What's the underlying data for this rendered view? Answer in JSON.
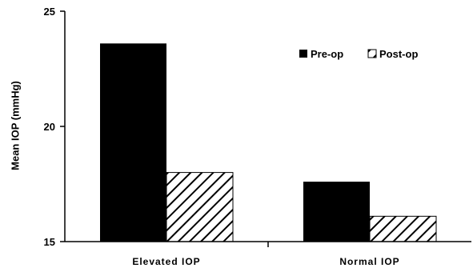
{
  "chart_data": {
    "type": "bar",
    "title": "",
    "xlabel": "",
    "ylabel": "Mean IOP (mmHg)",
    "ylim": [
      15,
      25
    ],
    "yticks": [
      15,
      20,
      25
    ],
    "ytick_labels": [
      "15",
      "20",
      "25"
    ],
    "categories": [
      "Elevated IOP",
      "Normal IOP"
    ],
    "series": [
      {
        "name": "Pre-op",
        "values": [
          23.6,
          17.6
        ],
        "fill": "solid",
        "color": "#000000"
      },
      {
        "name": "Post-op",
        "values": [
          18.0,
          16.1
        ],
        "fill": "hatched",
        "color": "#000000"
      }
    ],
    "legend_position": "top-right",
    "grid": false
  }
}
